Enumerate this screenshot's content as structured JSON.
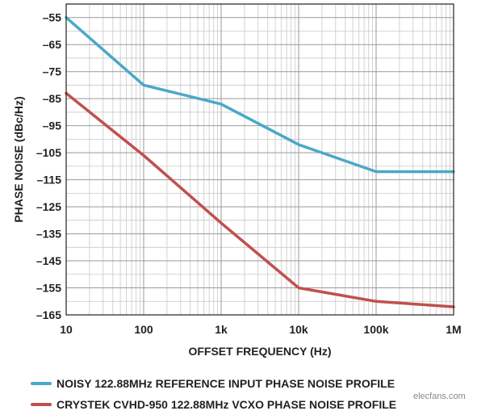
{
  "chart_data": {
    "type": "line",
    "title": "",
    "xlabel": "OFFSET FREQUENCY (Hz)",
    "ylabel": "PHASE NOISE (dBc/Hz)",
    "x_scale": "log",
    "xlim": [
      10,
      1000000
    ],
    "ylim": [
      -165,
      -50
    ],
    "grid": true,
    "x_tick_values": [
      10,
      100,
      1000,
      10000,
      100000,
      1000000
    ],
    "x_tick_labels": [
      "10",
      "100",
      "1k",
      "10k",
      "100k",
      "1M"
    ],
    "y_tick_values": [
      -55,
      -65,
      -75,
      -85,
      -95,
      -105,
      -115,
      -125,
      -135,
      -145,
      -155,
      -165
    ],
    "y_tick_labels": [
      "–55",
      "–65",
      "–75",
      "–85",
      "–95",
      "–105",
      "–115",
      "–125",
      "–135",
      "–145",
      "–155",
      "–165"
    ],
    "legend_position": "bottom",
    "series": [
      {
        "name": "NOISY 122.88MHz REFERENCE INPUT PHASE NOISE PROFILE",
        "color": "#4aa8c8",
        "x": [
          10,
          100,
          1000,
          10000,
          100000,
          1000000
        ],
        "y": [
          -55,
          -80,
          -87,
          -102,
          -112,
          -112
        ]
      },
      {
        "name": "CRYSTEK CVHD-950 122.88MHz VCXO PHASE NOISE PROFILE",
        "color": "#c0504d",
        "x": [
          10,
          100,
          1000,
          10000,
          100000,
          1000000
        ],
        "y": [
          -83,
          -106,
          -131,
          -155,
          -160,
          -162
        ]
      }
    ]
  },
  "watermark": "elecfans.com"
}
